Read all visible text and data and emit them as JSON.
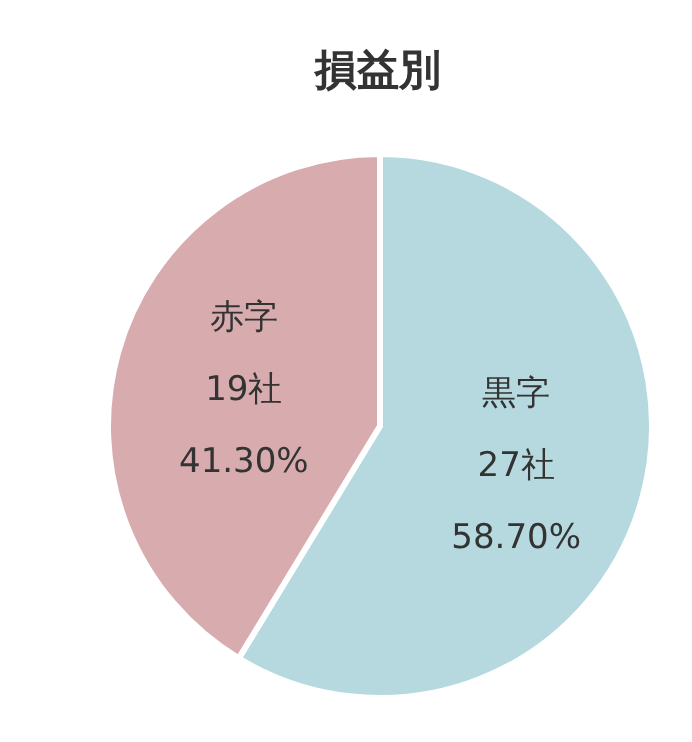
{
  "chart_data": {
    "type": "pie",
    "title": "損益別",
    "categories": [
      "黒字",
      "赤字"
    ],
    "values": [
      27,
      19
    ],
    "colors": [
      "#b5d9de",
      "#d8acae"
    ],
    "value_labels": [
      "27社\n58.70%",
      "19社\n41.30%"
    ]
  }
}
